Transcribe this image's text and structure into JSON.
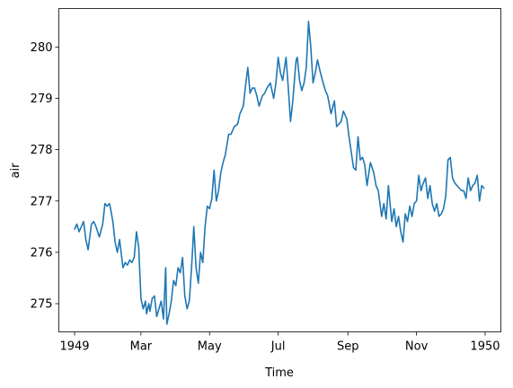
{
  "chart_data": {
    "type": "line",
    "title": "",
    "xlabel": "Time",
    "ylabel": "air",
    "ylim": [
      274.45,
      280.75
    ],
    "xlim": [
      "1948-12-18",
      "1950-01-15"
    ],
    "grid": false,
    "line_color": "#1f77b4",
    "xticks": [
      {
        "date": "1949-01-01",
        "label": "1949"
      },
      {
        "date": "1949-03-01",
        "label": "Mar"
      },
      {
        "date": "1949-05-01",
        "label": "May"
      },
      {
        "date": "1949-07-01",
        "label": "Jul"
      },
      {
        "date": "1949-09-01",
        "label": "Sep"
      },
      {
        "date": "1949-11-01",
        "label": "Nov"
      },
      {
        "date": "1950-01-01",
        "label": "1950"
      }
    ],
    "yticks": [
      {
        "value": 275,
        "label": "275"
      },
      {
        "value": 276,
        "label": "276"
      },
      {
        "value": 277,
        "label": "277"
      },
      {
        "value": 278,
        "label": "278"
      },
      {
        "value": 279,
        "label": "279"
      },
      {
        "value": 280,
        "label": "280"
      }
    ],
    "series": [
      {
        "x": [
          "1949-01-01",
          "1949-01-03",
          "1949-01-05",
          "1949-01-07",
          "1949-01-09",
          "1949-01-11",
          "1949-01-13",
          "1949-01-16",
          "1949-01-18",
          "1949-01-20",
          "1949-01-23",
          "1949-01-26",
          "1949-01-28",
          "1949-01-30",
          "1949-02-01",
          "1949-02-02",
          "1949-02-04",
          "1949-02-06",
          "1949-02-08",
          "1949-02-10",
          "1949-02-13",
          "1949-02-15",
          "1949-02-17",
          "1949-02-19",
          "1949-02-21",
          "1949-02-23",
          "1949-02-25",
          "1949-02-27",
          "1949-03-01",
          "1949-03-03",
          "1949-03-05",
          "1949-03-06",
          "1949-03-08",
          "1949-03-09",
          "1949-03-11",
          "1949-03-13",
          "1949-03-15",
          "1949-03-17",
          "1949-03-19",
          "1949-03-21",
          "1949-03-23",
          "1949-03-24",
          "1949-03-26",
          "1949-03-28",
          "1949-03-30",
          "1949-04-01",
          "1949-04-03",
          "1949-04-05",
          "1949-04-07",
          "1949-04-09",
          "1949-04-11",
          "1949-04-13",
          "1949-04-15",
          "1949-04-17",
          "1949-04-19",
          "1949-04-21",
          "1949-04-23",
          "1949-04-25",
          "1949-04-27",
          "1949-04-29",
          "1949-05-01",
          "1949-05-03",
          "1949-05-05",
          "1949-05-07",
          "1949-05-09",
          "1949-05-11",
          "1949-05-13",
          "1949-05-15",
          "1949-05-18",
          "1949-05-20",
          "1949-05-23",
          "1949-05-26",
          "1949-05-28",
          "1949-05-31",
          "1949-06-02",
          "1949-06-04",
          "1949-06-06",
          "1949-06-08",
          "1949-06-10",
          "1949-06-12",
          "1949-06-14",
          "1949-06-17",
          "1949-06-19",
          "1949-06-21",
          "1949-06-24",
          "1949-06-27",
          "1949-06-29",
          "1949-07-01",
          "1949-07-03",
          "1949-07-05",
          "1949-07-08",
          "1949-07-10",
          "1949-07-12",
          "1949-07-14",
          "1949-07-16",
          "1949-07-17",
          "1949-07-18",
          "1949-07-20",
          "1949-07-22",
          "1949-07-24",
          "1949-07-26",
          "1949-07-28",
          "1949-07-30",
          "1949-08-01",
          "1949-08-03",
          "1949-08-05",
          "1949-08-07",
          "1949-08-10",
          "1949-08-12",
          "1949-08-14",
          "1949-08-17",
          "1949-08-20",
          "1949-08-22",
          "1949-08-24",
          "1949-08-26",
          "1949-08-28",
          "1949-08-31",
          "1949-09-02",
          "1949-09-04",
          "1949-09-06",
          "1949-09-08",
          "1949-09-10",
          "1949-09-12",
          "1949-09-14",
          "1949-09-16",
          "1949-09-18",
          "1949-09-21",
          "1949-09-24",
          "1949-09-26",
          "1949-09-28",
          "1949-10-01",
          "1949-10-03",
          "1949-10-05",
          "1949-10-07",
          "1949-10-10",
          "1949-10-12",
          "1949-10-14",
          "1949-10-16",
          "1949-10-18",
          "1949-10-20",
          "1949-10-22",
          "1949-10-24",
          "1949-10-26",
          "1949-10-28",
          "1949-10-30",
          "1949-11-01",
          "1949-11-03",
          "1949-11-05",
          "1949-11-07",
          "1949-11-09",
          "1949-11-11",
          "1949-11-13",
          "1949-11-15",
          "1949-11-17",
          "1949-11-19",
          "1949-11-21",
          "1949-11-23",
          "1949-11-25",
          "1949-11-27",
          "1949-11-29",
          "1949-12-01",
          "1949-12-03",
          "1949-12-05",
          "1949-12-07",
          "1949-12-09",
          "1949-12-11",
          "1949-12-13",
          "1949-12-15",
          "1949-12-17",
          "1949-12-19",
          "1949-12-21",
          "1949-12-23",
          "1949-12-25",
          "1949-12-27",
          "1949-12-29",
          "1949-12-31"
        ],
        "y": [
          276.45,
          276.55,
          276.4,
          276.5,
          276.6,
          276.25,
          276.05,
          276.55,
          276.6,
          276.5,
          276.3,
          276.55,
          276.95,
          276.9,
          276.95,
          276.85,
          276.6,
          276.2,
          276.0,
          276.25,
          275.7,
          275.8,
          275.75,
          275.85,
          275.8,
          275.9,
          276.4,
          276.1,
          275.1,
          274.9,
          275.05,
          274.8,
          275.0,
          274.85,
          275.1,
          275.15,
          274.75,
          274.9,
          275.05,
          274.7,
          275.7,
          274.6,
          274.8,
          275.05,
          275.45,
          275.35,
          275.7,
          275.6,
          275.9,
          275.15,
          274.9,
          275.05,
          275.7,
          276.5,
          275.7,
          275.4,
          276.0,
          275.8,
          276.5,
          276.9,
          276.85,
          277.05,
          277.6,
          277.0,
          277.2,
          277.55,
          277.75,
          277.9,
          278.3,
          278.3,
          278.45,
          278.5,
          278.7,
          278.85,
          279.25,
          279.6,
          279.1,
          279.2,
          279.2,
          279.05,
          278.85,
          279.05,
          279.1,
          279.2,
          279.3,
          279.0,
          279.3,
          279.8,
          279.5,
          279.35,
          279.8,
          279.2,
          278.55,
          278.95,
          279.5,
          279.75,
          279.8,
          279.35,
          279.15,
          279.3,
          279.6,
          280.5,
          280.0,
          279.3,
          279.5,
          279.75,
          279.55,
          279.3,
          279.15,
          279.05,
          278.7,
          278.95,
          278.45,
          278.5,
          278.55,
          278.75,
          278.6,
          278.25,
          277.95,
          277.65,
          277.6,
          278.25,
          277.8,
          277.85,
          277.7,
          277.3,
          277.75,
          277.55,
          277.3,
          277.2,
          276.7,
          276.95,
          276.65,
          277.3,
          276.6,
          276.85,
          276.5,
          276.7,
          276.4,
          276.2,
          276.75,
          276.6,
          276.9,
          276.7,
          276.95,
          277.0,
          277.5,
          277.2,
          277.35,
          277.45,
          277.05,
          277.3,
          276.95,
          276.8,
          276.95,
          276.7,
          276.75,
          276.85,
          277.1,
          277.8,
          277.85,
          277.45,
          277.35,
          277.3,
          277.25,
          277.2,
          277.2,
          277.05,
          277.45,
          277.2,
          277.3,
          277.35,
          277.5,
          277.0,
          277.3,
          277.25
        ]
      }
    ]
  }
}
